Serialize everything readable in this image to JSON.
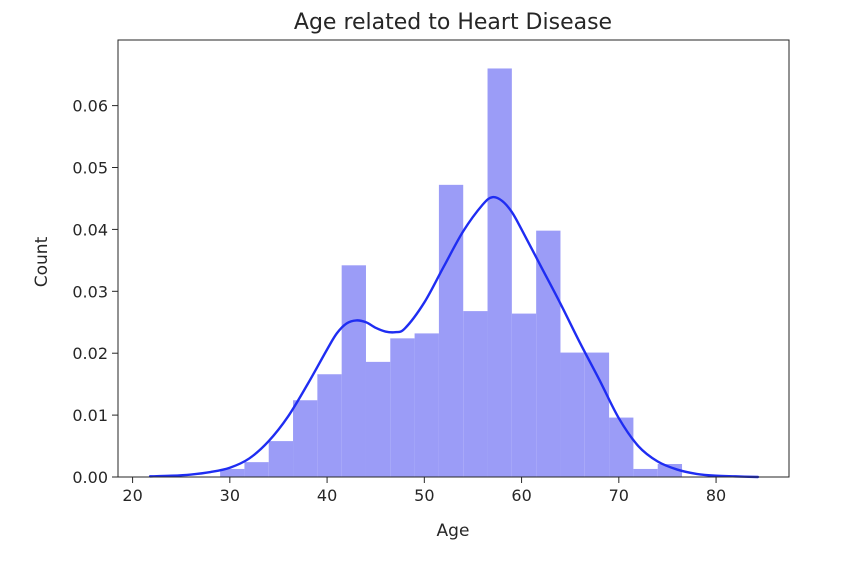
{
  "chart_data": {
    "type": "bar",
    "title": "Age related to Heart Disease",
    "xlabel": "Age",
    "ylabel": "Count",
    "xlim": [
      18.5,
      87.5
    ],
    "ylim": [
      0,
      0.0706
    ],
    "xticks": [
      20,
      30,
      40,
      50,
      60,
      70,
      80
    ],
    "yticks": [
      0.0,
      0.01,
      0.02,
      0.03,
      0.04,
      0.05,
      0.06
    ],
    "ytick_labels": [
      "0.00",
      "0.01",
      "0.02",
      "0.03",
      "0.04",
      "0.05",
      "0.06"
    ],
    "grid": false,
    "bin_edges": [
      29.0,
      31.5,
      34.0,
      36.5,
      39.0,
      41.5,
      44.0,
      46.5,
      49.0,
      51.5,
      54.0,
      56.5,
      59.0,
      61.5,
      64.0,
      66.5,
      69.0,
      71.5,
      74.0,
      76.5
    ],
    "density": [
      0.0013,
      0.0024,
      0.0058,
      0.0124,
      0.0166,
      0.0342,
      0.0186,
      0.0224,
      0.0232,
      0.0472,
      0.0268,
      0.066,
      0.0264,
      0.0398,
      0.0201,
      0.0201,
      0.0096,
      0.0013,
      0.0021
    ],
    "kde": {
      "x": [
        21.8,
        24,
        26,
        28,
        30,
        32,
        34,
        36,
        38,
        40,
        41,
        42,
        43,
        44,
        45,
        46,
        47,
        48,
        50,
        52,
        54,
        56,
        57,
        58,
        59,
        60,
        62,
        64,
        66,
        68,
        70,
        72,
        74,
        76,
        78,
        80,
        82,
        84.3
      ],
      "y": [
        0.0001,
        0.0002,
        0.0004,
        0.0008,
        0.0015,
        0.003,
        0.0058,
        0.0098,
        0.015,
        0.0206,
        0.0232,
        0.0248,
        0.0253,
        0.025,
        0.0241,
        0.0235,
        0.0234,
        0.024,
        0.0282,
        0.034,
        0.0397,
        0.044,
        0.0452,
        0.0446,
        0.0428,
        0.04,
        0.034,
        0.028,
        0.0217,
        0.0157,
        0.0095,
        0.005,
        0.0025,
        0.0012,
        0.0005,
        0.0002,
        0.0001,
        0.0
      ]
    },
    "colors": {
      "bars": "#9b9cf7",
      "kde": "#1f2df2",
      "text": "#262626"
    }
  }
}
